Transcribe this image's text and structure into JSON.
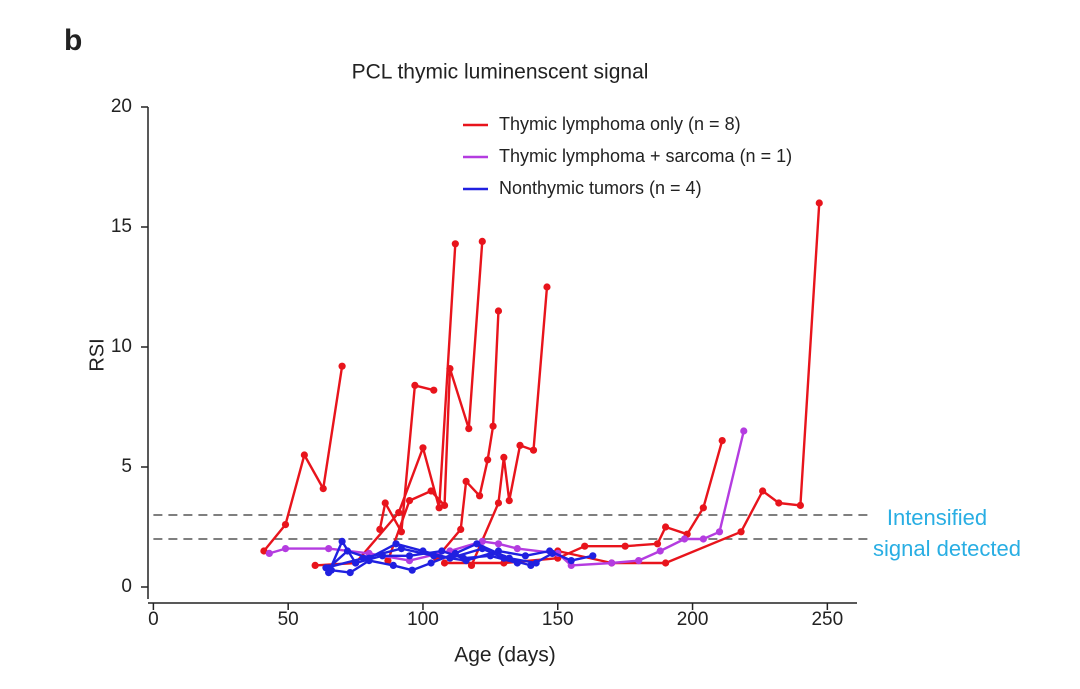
{
  "chart_data": {
    "type": "line",
    "panel_label": "b",
    "title": "PCL thymic luminenscent signal",
    "x_label": "Age (days)",
    "y_label": "RSI",
    "xlim": [
      -2,
      261
    ],
    "ylim": [
      -0.5,
      20
    ],
    "xticks": [
      0,
      50,
      100,
      150,
      200,
      250
    ],
    "yticks": [
      0,
      5,
      10,
      15,
      20
    ],
    "thresholds": [
      3,
      2
    ],
    "annotation": [
      "Intensified",
      "signal detected"
    ],
    "annotation_color": "#29aee3",
    "legend": "top-right",
    "series": [
      {
        "name": "Thymic lymphoma only (n = 8)",
        "color": "#e8141c",
        "lines": [
          {
            "x": [
              41,
              49,
              56,
              63,
              70
            ],
            "values": [
              1.5,
              2.6,
              5.5,
              4.1,
              9.2
            ]
          },
          {
            "x": [
              84,
              86,
              92,
              97,
              104
            ],
            "values": [
              2.4,
              3.5,
              2.3,
              8.4,
              8.2
            ]
          },
          {
            "x": [
              60,
              75,
              91,
              100,
              106,
              112
            ],
            "values": [
              0.9,
              1.0,
              3.1,
              5.8,
              3.3,
              14.3
            ]
          },
          {
            "x": [
              87,
              95,
              103,
              108,
              110,
              117,
              122
            ],
            "values": [
              1.1,
              3.6,
              4.0,
              3.4,
              9.1,
              6.6,
              14.4
            ]
          },
          {
            "x": [
              105,
              114,
              116,
              121,
              124,
              126,
              128
            ],
            "values": [
              1.2,
              2.4,
              4.4,
              3.8,
              5.3,
              6.7,
              11.5
            ]
          },
          {
            "x": [
              118,
              128,
              130,
              132,
              136,
              141,
              146
            ],
            "values": [
              0.9,
              3.5,
              5.4,
              3.6,
              5.9,
              5.7,
              12.5
            ]
          },
          {
            "x": [
              108,
              130,
              150,
              160,
              175,
              187,
              190,
              198,
              204,
              211
            ],
            "values": [
              1.0,
              1.0,
              1.2,
              1.7,
              1.7,
              1.8,
              2.5,
              2.2,
              3.3,
              6.1
            ]
          },
          {
            "x": [
              150,
              170,
              190,
              218,
              226,
              232,
              240,
              247
            ],
            "values": [
              1.5,
              1.0,
              1.0,
              2.3,
              4.0,
              3.5,
              3.4,
              16.0
            ]
          }
        ]
      },
      {
        "name": "Thymic lymphoma + sarcoma (n = 1)",
        "color": "#b43ce0",
        "lines": [
          {
            "x": [
              43,
              49,
              65,
              80,
              95,
              110,
              122,
              128,
              135,
              150,
              155,
              170,
              180,
              188,
              197,
              204,
              210,
              219
            ],
            "values": [
              1.4,
              1.6,
              1.6,
              1.4,
              1.1,
              1.5,
              1.9,
              1.8,
              1.6,
              1.4,
              0.9,
              1.0,
              1.1,
              1.5,
              2.0,
              2.0,
              2.3,
              6.5
            ]
          }
        ]
      },
      {
        "name": "Nonthymic tumors (n = 4)",
        "color": "#2020e0",
        "lines": [
          {
            "x": [
              65,
              70,
              75,
              85,
              95,
              107,
              115,
              125,
              135
            ],
            "values": [
              0.6,
              1.9,
              1.0,
              1.3,
              1.3,
              1.5,
              1.2,
              1.3,
              1.0
            ]
          },
          {
            "x": [
              65,
              72,
              80,
              90,
              100,
              110,
              122,
              130,
              140,
              148
            ],
            "values": [
              0.8,
              1.5,
              1.2,
              1.8,
              1.5,
              1.2,
              1.6,
              1.2,
              0.9,
              1.4
            ]
          },
          {
            "x": [
              66,
              73,
              80,
              89,
              96,
              103,
              112,
              120,
              132,
              142
            ],
            "values": [
              0.7,
              0.6,
              1.1,
              0.9,
              0.7,
              1.0,
              1.4,
              1.8,
              1.2,
              1.0
            ]
          },
          {
            "x": [
              64,
              78,
              92,
              104,
              116,
              128,
              138,
              147,
              155,
              163
            ],
            "values": [
              0.8,
              1.2,
              1.6,
              1.3,
              1.1,
              1.5,
              1.3,
              1.5,
              1.1,
              1.3
            ]
          }
        ]
      }
    ]
  }
}
